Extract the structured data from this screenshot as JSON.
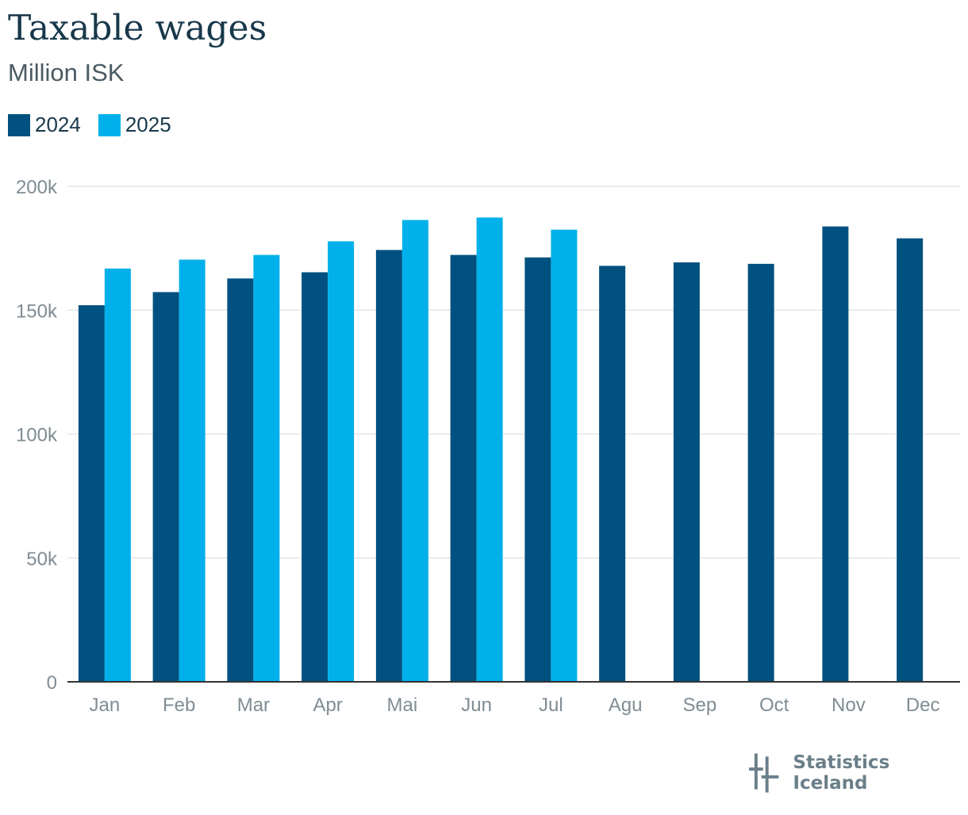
{
  "title": "Taxable wages",
  "subtitle": "Million ISK",
  "brand": {
    "name": "Statistics Iceland",
    "logo_icon": "statistics-iceland-logo-icon"
  },
  "colors": {
    "series_2024": "#00517f",
    "series_2025": "#00b0ea",
    "grid": "#e3e6e8",
    "axis": "#333333",
    "text": "#17384a"
  },
  "chart_data": {
    "type": "bar",
    "title": "Taxable wages",
    "subtitle": "Million ISK",
    "xlabel": "",
    "ylabel": "",
    "categories": [
      "Jan",
      "Feb",
      "Mar",
      "Apr",
      "Mai",
      "Jun",
      "Jul",
      "Agu",
      "Sep",
      "Oct",
      "Nov",
      "Dec"
    ],
    "series": [
      {
        "name": "2024",
        "color": "#00517f",
        "values": [
          152000,
          157300,
          162800,
          165300,
          174300,
          172300,
          171300,
          167900,
          169300,
          168700,
          183800,
          179000
        ]
      },
      {
        "name": "2025",
        "color": "#00b0ea",
        "values": [
          166800,
          170400,
          172300,
          177800,
          186400,
          187400,
          182500,
          null,
          null,
          null,
          null,
          null
        ]
      }
    ],
    "ylim": [
      0,
      200000
    ],
    "yticks": [
      0,
      50000,
      100000,
      150000,
      200000
    ],
    "ytick_labels": [
      "0",
      "50k",
      "100k",
      "150k",
      "200k"
    ],
    "grid": true,
    "legend": "top-left"
  }
}
